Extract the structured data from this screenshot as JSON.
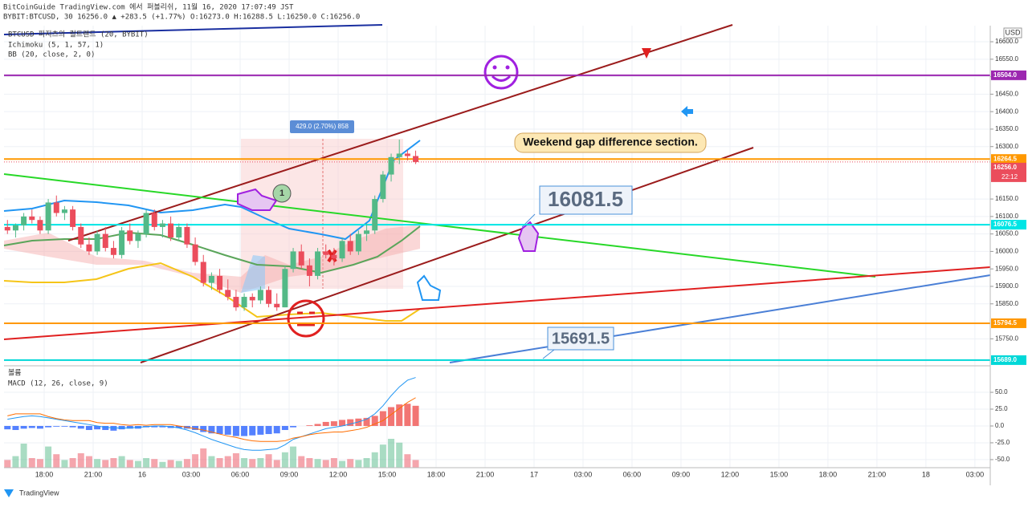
{
  "header": {
    "publisher": "BitCoinGuide TradingView.com 에서 퍼블리쉬, 11월 16, 2020 17:07:49 JST",
    "symbol_line": "BYBIT:BTCUSD, 30 16256.0 ▲ +283.5 (+1.77%) O:16273.0 H:16288.5 L:16250.0 C:16256.0"
  },
  "chart_data": {
    "type": "candlestick",
    "indicators": [
      "BTCUSD 피지츠의 컬트랜드 (20, BYBIT)",
      "Ichimoku (5, 1, 57, 1)",
      "BB (20, close, 2, 0)"
    ],
    "currency": "USD",
    "x": [
      15.75,
      16.25,
      16.75,
      17.25,
      17.75,
      18.25,
      18.75,
      19.25,
      19.75,
      20.25,
      20.75,
      21.25,
      21.75,
      22.25,
      22.75,
      23.25,
      23.75,
      24.25,
      24.75,
      25.25,
      25.75,
      26.25,
      26.75,
      27.25,
      27.75,
      28.25,
      28.75,
      29.25,
      29.75,
      30.25,
      30.75,
      31.25,
      31.75,
      32.25,
      32.75,
      33.25,
      33.75,
      34.25,
      34.75,
      35.25,
      35.75,
      36.25,
      36.75,
      37.25,
      37.75,
      38.25,
      38.75,
      39.25,
      39.75,
      40.25,
      40.75
    ],
    "open": [
      16070,
      16060,
      16075,
      16100,
      16090,
      16060,
      16140,
      16110,
      16120,
      16070,
      16020,
      16000,
      16050,
      16010,
      15990,
      16060,
      16030,
      16050,
      16110,
      16070,
      16080,
      16040,
      16070,
      16020,
      15970,
      15910,
      15930,
      15890,
      15870,
      15840,
      15870,
      15860,
      15890,
      15850,
      15840,
      15950,
      16000,
      15960,
      15930,
      16000,
      15990,
      15980,
      16030,
      16000,
      16050,
      16060,
      16150,
      16220,
      16270,
      16280,
      16273
    ],
    "high": [
      16090,
      16080,
      16110,
      16120,
      16100,
      16150,
      16160,
      16130,
      16130,
      16080,
      16040,
      16060,
      16070,
      16030,
      16070,
      16080,
      16060,
      16120,
      16120,
      16090,
      16100,
      16080,
      16080,
      16040,
      15990,
      15940,
      15950,
      15920,
      15890,
      15880,
      15880,
      15900,
      15900,
      15880,
      15960,
      16010,
      16020,
      15980,
      16010,
      16020,
      16010,
      16040,
      16050,
      16060,
      16080,
      16160,
      16230,
      16280,
      16320,
      16290,
      16288.5
    ],
    "low": [
      16050,
      16040,
      16060,
      16080,
      16050,
      16050,
      16100,
      16090,
      16060,
      16010,
      15990,
      15990,
      16000,
      15980,
      15980,
      16020,
      16010,
      16040,
      16060,
      16040,
      16030,
      16030,
      16010,
      15960,
      15900,
      15890,
      15880,
      15860,
      15830,
      15830,
      15840,
      15850,
      15840,
      15830,
      15840,
      15940,
      15950,
      15900,
      15920,
      15980,
      15960,
      15970,
      15990,
      15990,
      16030,
      16050,
      16140,
      16200,
      16250,
      16260,
      16250
    ],
    "close": [
      16060,
      16075,
      16100,
      16090,
      16060,
      16140,
      16110,
      16120,
      16070,
      16020,
      16000,
      16050,
      16010,
      15990,
      16060,
      16030,
      16050,
      16110,
      16070,
      16080,
      16040,
      16070,
      16020,
      15970,
      15910,
      15930,
      15890,
      15870,
      15840,
      15870,
      15860,
      15890,
      15850,
      15840,
      15950,
      16000,
      15960,
      15930,
      16000,
      15990,
      15980,
      16030,
      16000,
      16050,
      16060,
      16150,
      16220,
      16270,
      16280,
      16273,
      16256
    ],
    "volume": [
      8,
      12,
      25,
      10,
      9,
      22,
      14,
      8,
      10,
      15,
      12,
      9,
      8,
      10,
      12,
      8,
      7,
      10,
      9,
      6,
      8,
      7,
      9,
      14,
      20,
      12,
      10,
      12,
      15,
      10,
      9,
      10,
      14,
      8,
      16,
      22,
      12,
      10,
      9,
      8,
      10,
      7,
      9,
      8,
      10,
      16,
      24,
      30,
      26,
      14,
      8
    ],
    "up_color": "#53b987",
    "down_color": "#eb4d5c",
    "xlim": [
      15.54,
      75.94
    ],
    "xticks": [
      {
        "value": 18,
        "label": "18:00"
      },
      {
        "value": 21,
        "label": "21:00"
      },
      {
        "value": 24,
        "label": "16"
      },
      {
        "value": 27,
        "label": "03:00"
      },
      {
        "value": 30,
        "label": "06:00"
      },
      {
        "value": 33,
        "label": "09:00"
      },
      {
        "value": 36,
        "label": "12:00"
      },
      {
        "value": 39,
        "label": "15:00"
      },
      {
        "value": 42,
        "label": "18:00"
      },
      {
        "value": 45,
        "label": "21:00"
      },
      {
        "value": 48,
        "label": "17"
      },
      {
        "value": 51,
        "label": "03:00"
      },
      {
        "value": 54,
        "label": "06:00"
      },
      {
        "value": 57,
        "label": "09:00"
      },
      {
        "value": 60,
        "label": "12:00"
      },
      {
        "value": 63,
        "label": "15:00"
      },
      {
        "value": 66,
        "label": "18:00"
      },
      {
        "value": 69,
        "label": "21:00"
      },
      {
        "value": 72,
        "label": "18"
      },
      {
        "value": 75,
        "label": "03:00"
      }
    ],
    "ylim": [
      15675,
      16646
    ],
    "yticks": [
      {
        "value": 16600,
        "label": "16600.0"
      },
      {
        "value": 16550,
        "label": "16550.0"
      },
      {
        "value": 16500,
        "label": "16500.0"
      },
      {
        "value": 16450,
        "label": "16450.0"
      },
      {
        "value": 16400,
        "label": "16400.0"
      },
      {
        "value": 16350,
        "label": "16350.0"
      },
      {
        "value": 16300,
        "label": "16300.0"
      },
      {
        "value": 16150,
        "label": "16150.0"
      },
      {
        "value": 16100,
        "label": "16100.0"
      },
      {
        "value": 16050,
        "label": "16050.0"
      },
      {
        "value": 16000,
        "label": "16000.0"
      },
      {
        "value": 15950,
        "label": "15950.0"
      },
      {
        "value": 15900,
        "label": "15900.0"
      },
      {
        "value": 15850,
        "label": "15850.0"
      },
      {
        "value": 15750,
        "label": "15750.0"
      }
    ],
    "grid": true,
    "price_lines": [
      {
        "value": 16504,
        "label": "16504.0",
        "color": "#9c27b0"
      },
      {
        "value": 16264.5,
        "label": "16264.5",
        "color": "#ff9800"
      },
      {
        "value": 16076.5,
        "label": "16076.5",
        "color": "#00e5e5"
      },
      {
        "value": 15794.5,
        "label": "15794.5",
        "color": "#ff9800"
      },
      {
        "value": 15689,
        "label": "15689.0",
        "color": "#00d8d8"
      }
    ],
    "current_price": {
      "value": 16256,
      "label": "16256.0",
      "countdown": "22:12",
      "color": "#eb4d5c"
    },
    "annotations": {
      "gap": "Weekend gap difference section.",
      "level_high": "16081.5",
      "level_low": "15691.5",
      "measure": "429.0 (2.70%) 858",
      "marker": "1"
    },
    "macd": {
      "volume_title": "볼륨",
      "title": "MACD (12, 26, close, 9)",
      "histogram": [
        -5,
        -6,
        -4,
        -3,
        -4,
        -2,
        -1,
        -1,
        -2,
        -4,
        -6,
        -5,
        -6,
        -7,
        -5,
        -4,
        -4,
        -2,
        -2,
        -2,
        -3,
        -3,
        -4,
        -6,
        -9,
        -11,
        -12,
        -13,
        -15,
        -15,
        -14,
        -13,
        -12,
        -11,
        -6,
        -2,
        0,
        1,
        3,
        6,
        7,
        9,
        10,
        11,
        12,
        15,
        22,
        28,
        32,
        33,
        30
      ],
      "macd": [
        10,
        12,
        14,
        15,
        14,
        12,
        10,
        8,
        6,
        4,
        2,
        0,
        -2,
        -3,
        -3,
        -3,
        -2,
        -1,
        0,
        0,
        -1,
        -3,
        -6,
        -10,
        -15,
        -20,
        -24,
        -28,
        -32,
        -35,
        -36,
        -36,
        -35,
        -34,
        -28,
        -20,
        -16,
        -12,
        -8,
        -4,
        -2,
        0,
        3,
        6,
        10,
        18,
        30,
        45,
        58,
        68,
        72
      ],
      "signal": [
        15,
        18,
        18,
        18,
        18,
        14,
        11,
        9,
        8,
        8,
        8,
        5,
        4,
        4,
        2,
        1,
        2,
        1,
        2,
        2,
        2,
        0,
        -2,
        -4,
        -6,
        -9,
        -12,
        -15,
        -17,
        -20,
        -22,
        -23,
        -23,
        -23,
        -22,
        -18,
        -16,
        -13,
        -11,
        -10,
        -9,
        -9,
        -7,
        -5,
        -2,
        3,
        8,
        17,
        26,
        35,
        42
      ],
      "macd_color": "#2196f3",
      "signal_color": "#ff6d00",
      "hist_up_color": "#ef5350",
      "hist_down_color": "#2962ff",
      "ylim": [
        -62,
        87
      ],
      "yticks": [
        {
          "value": 50,
          "label": "50.0"
        },
        {
          "value": 25,
          "label": "25.0"
        },
        {
          "value": 0,
          "label": "0.0"
        },
        {
          "value": -25,
          "label": "-25.0"
        },
        {
          "value": -50,
          "label": "-50.0"
        }
      ]
    }
  },
  "footer": {
    "brand": "TradingView"
  }
}
